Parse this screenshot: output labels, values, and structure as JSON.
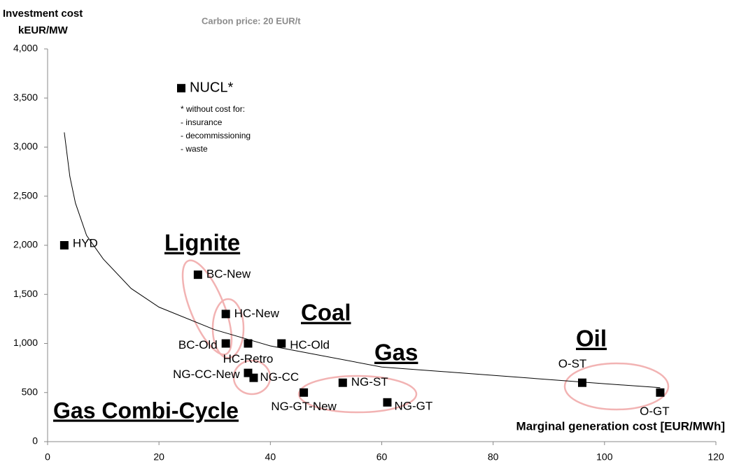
{
  "chart_data": {
    "type": "scatter",
    "title": "Carbon price: 20 EUR/t",
    "y_label": [
      "Investment cost",
      "kEUR/MW"
    ],
    "x_label": "Marginal generation  cost [EUR/MWh]",
    "xlim": [
      0,
      120
    ],
    "xticks": [
      0,
      20,
      40,
      60,
      80,
      100,
      120
    ],
    "ylim": [
      0,
      4000
    ],
    "yticks": [
      0,
      500,
      {
        "value": 1000,
        "label": "1,000"
      },
      {
        "value": 1500,
        "label": "1,500"
      },
      {
        "value": 2000,
        "label": "2,000"
      },
      {
        "value": 2500,
        "label": "2,500"
      },
      {
        "value": 3000,
        "label": "3,000"
      },
      {
        "value": 3500,
        "label": "3,500"
      },
      {
        "value": 4000,
        "label": "4,000"
      }
    ],
    "color": "#000000",
    "point_labels": [
      "NUCL*",
      "HYD",
      "BC-New",
      "HC-New",
      "BC-Old",
      "HC-Retro",
      "HC-Old",
      "NG-CC-New",
      "NG-CC",
      "NG-GT-New",
      "NG-ST",
      "NG-GT",
      "O-ST",
      "O-GT"
    ],
    "x": [
      24,
      3,
      27,
      32,
      32,
      36,
      42,
      36,
      37,
      46,
      53,
      61,
      96,
      110
    ],
    "values": [
      3600,
      2000,
      1700,
      1300,
      1000,
      1000,
      1000,
      700,
      650,
      500,
      600,
      400,
      600,
      500
    ],
    "curve": {
      "x": [
        3,
        4,
        5,
        7,
        10,
        15,
        20,
        30,
        40,
        60,
        80,
        100,
        110
      ],
      "values": [
        3150,
        2700,
        2430,
        2100,
        1860,
        1560,
        1370,
        1140,
        975,
        760,
        675,
        590,
        550
      ]
    },
    "annotations": [
      "Lignite",
      "Coal",
      "Gas",
      "Oil",
      "Gas Combi-Cycle"
    ],
    "notes": [
      "* without cost for:",
      "- insurance",
      "- decommissioning",
      "- waste"
    ]
  }
}
